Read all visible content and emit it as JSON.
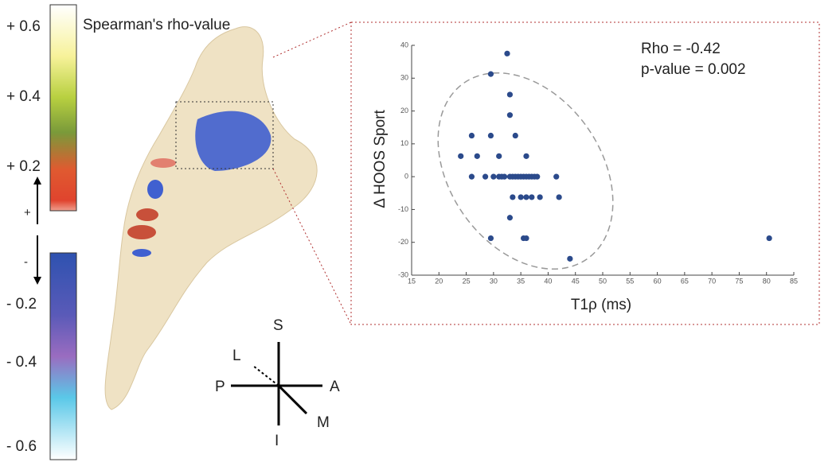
{
  "colorbar": {
    "title": "Spearman's rho-value",
    "labels": [
      "+ 0.6",
      "+ 0.4",
      "+ 0.2",
      "+",
      "-",
      "- 0.2",
      "- 0.4",
      "- 0.6"
    ]
  },
  "compass": {
    "superior": "S",
    "inferior": "I",
    "anterior": "A",
    "posterior": "P",
    "lateral": "L",
    "medial": "M"
  },
  "chart_data": {
    "type": "scatter",
    "annotations": [
      "Rho = -0.42",
      "p-value = 0.002"
    ],
    "x_label": "T1ρ (ms)",
    "y_label": "Δ HOOS Sport",
    "color": "#2b4a8b",
    "x": [
      24,
      26,
      26,
      27,
      29.5,
      29.5,
      29.5,
      28.5,
      30,
      31,
      31.5,
      32,
      31,
      32.5,
      33,
      33,
      34,
      33,
      33.5,
      33,
      33.5,
      34,
      34.5,
      35,
      35.5,
      35,
      36,
      36,
      35.5,
      36,
      36,
      36.5,
      37,
      37.5,
      37,
      38,
      38.5,
      41.5,
      42,
      44,
      80.5
    ],
    "values": [
      6.25,
      12.5,
      0,
      6.25,
      31.25,
      -18.75,
      12.5,
      0,
      0,
      0,
      0,
      0,
      6.25,
      37.5,
      25,
      18.75,
      12.5,
      -12.5,
      -6.25,
      0,
      0,
      0,
      0,
      0,
      0,
      -6.25,
      -6.25,
      6.25,
      -18.75,
      -18.75,
      0,
      0,
      0,
      0,
      -6.25,
      0,
      -6.25,
      0,
      -6.25,
      -25,
      -18.75
    ],
    "xlim": [
      15,
      85
    ],
    "xticks": [
      15,
      20,
      25,
      30,
      35,
      40,
      45,
      50,
      55,
      60,
      65,
      70,
      75,
      80,
      85
    ],
    "ylim": [
      -30,
      40
    ],
    "yticks": [
      -30,
      -20,
      -10,
      0,
      10,
      20,
      30,
      40
    ]
  }
}
